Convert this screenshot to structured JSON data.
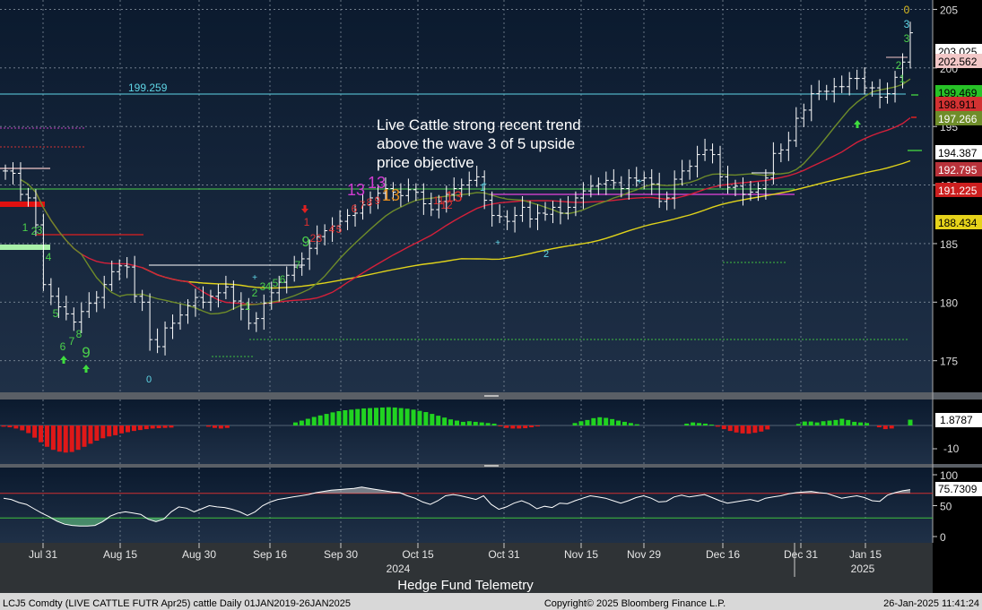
{
  "chart_data": {
    "type": "bar",
    "title": "Hedge Fund Telemetry",
    "annotation": "Live Cattle strong recent trend above the wave 3 of 5 upside price objective",
    "annotation_lines": [
      "Live Cattle strong recent trend",
      "above the wave 3 of 5 upside",
      "price objective"
    ],
    "footer_left": "LCJ5 Comdty (LIVE CATTLE FUTR  Apr25) cattle  Daily 01JAN2019-26JAN2025",
    "footer_center": "Copyright© 2025 Bloomberg Finance L.P.",
    "footer_right": "26-Jan-2025 11:41:24",
    "x_ticks": [
      "Jul 31",
      "Aug 15",
      "Aug 30",
      "Sep 16",
      "Sep 30",
      "Oct 15",
      "Oct 31",
      "Nov 15",
      "Nov 29",
      "Dec 16",
      "Dec 31",
      "Jan 15"
    ],
    "x_years": [
      "2024",
      "2025"
    ],
    "price_panel": {
      "ylim": [
        172.3,
        205.8
      ],
      "y_ticks": [
        "205",
        "200",
        "195",
        "190",
        "185",
        "180",
        "175"
      ],
      "closes": [
        191.2,
        191.0,
        189.2,
        188.9,
        186.6,
        181.5,
        180.5,
        179.6,
        179.0,
        178.3,
        179.2,
        179.9,
        180.4,
        181.5,
        182.6,
        183.1,
        183.0,
        180.5,
        180.0,
        176.8,
        176.2,
        177.8,
        178.2,
        178.9,
        179.7,
        180.4,
        180.0,
        180.5,
        180.8,
        181.3,
        180.1,
        179.4,
        178.2,
        178.6,
        179.9,
        180.8,
        181.7,
        182.3,
        183.0,
        183.7,
        184.6,
        185.6,
        186.1,
        186.5,
        186.9,
        187.4,
        187.6,
        188.3,
        188.9,
        189.3,
        189.7,
        189.4,
        189.1,
        189.6,
        189.4,
        188.4,
        187.9,
        188.6,
        189.2,
        189.7,
        190.0,
        190.4,
        190.7,
        188.7,
        187.4,
        187.3,
        186.9,
        187.4,
        188.1,
        187.1,
        187.6,
        187.5,
        188.1,
        187.6,
        188.1,
        188.9,
        189.5,
        189.9,
        190.1,
        190.4,
        190.2,
        189.7,
        190.6,
        190.4,
        190.6,
        190.1,
        188.6,
        188.9,
        190.5,
        191.2,
        191.6,
        192.6,
        193.0,
        192.6,
        190.7,
        189.8,
        189.9,
        189.2,
        189.4,
        189.7,
        190.6,
        192.7,
        193.0,
        193.8,
        195.7,
        196.4,
        197.8,
        198.0,
        198.0,
        198.4,
        198.4,
        199.1,
        199.1,
        198.3,
        198.3,
        197.5,
        197.8,
        199.2,
        200.5,
        203.0
      ],
      "series": [
        {
          "name": "",
          "color": "#6e8b2a"
        },
        {
          "name": "",
          "color": "#d4203a"
        },
        {
          "name": "",
          "color": "#e0d31a"
        }
      ],
      "h_lines": [
        {
          "label": "199.259",
          "value": 199.26,
          "color": "#5fd6e6"
        },
        {
          "label": "",
          "value": 191.2,
          "color": "#4bd04b"
        },
        {
          "label": "",
          "value": 190.9,
          "color": "#c33ec3"
        },
        {
          "label": "",
          "value": 178.375,
          "color": "#3fbf3f"
        }
      ],
      "price_labels": [
        {
          "value": "203.025",
          "bg": "#ffffff",
          "fg": "#000000"
        },
        {
          "value": "202.562",
          "bg": "#f2c7c7",
          "fg": "#000000"
        },
        {
          "value": "199.469",
          "bg": "#27c227",
          "fg": "#000000"
        },
        {
          "value": "198.911",
          "bg": "#d23232",
          "fg": "#000000"
        },
        {
          "value": "197.266",
          "bg": "#6f8d2a",
          "fg": "#ffffff"
        },
        {
          "value": "194.387",
          "bg": "#ffffff",
          "fg": "#000000"
        },
        {
          "value": "192.795",
          "bg": "#b8323a",
          "fg": "#ffffff"
        },
        {
          "value": "191.225",
          "bg": "#cc1f1f",
          "fg": "#ffffff"
        },
        {
          "value": "188.434",
          "bg": "#e6d21a",
          "fg": "#000000"
        }
      ]
    },
    "td_counts": [
      {
        "text": "1",
        "color": "#4bd04b",
        "size": 12
      },
      {
        "text": "2",
        "color": "#4bd04b",
        "size": 12
      },
      {
        "text": "3",
        "color": "#4bd04b",
        "size": 12
      },
      {
        "text": "4",
        "color": "#4bd04b",
        "size": 12
      },
      {
        "text": "5",
        "color": "#4bd04b",
        "size": 12
      },
      {
        "text": "6",
        "color": "#4bd04b",
        "size": 12
      },
      {
        "text": "7",
        "color": "#4bd04b",
        "size": 12
      },
      {
        "text": "8",
        "color": "#4bd04b",
        "size": 12
      },
      {
        "text": "9",
        "color": "#4bd04b",
        "size": 17
      },
      {
        "text": "0",
        "color": "#5fd6e6",
        "size": 11
      },
      {
        "text": "1",
        "color": "#4bd04b",
        "size": 12
      },
      {
        "text": "2",
        "color": "#4bd04b",
        "size": 12
      },
      {
        "text": "3",
        "color": "#4bd04b",
        "size": 12
      },
      {
        "text": "4",
        "color": "#4bd04b",
        "size": 12
      },
      {
        "text": "5",
        "color": "#4bd04b",
        "size": 12
      },
      {
        "text": "6",
        "color": "#4bd04b",
        "size": 12
      },
      {
        "text": "7",
        "color": "#4bd04b",
        "size": 12
      },
      {
        "text": "9",
        "color": "#4bd04b",
        "size": 16
      },
      {
        "text": "1",
        "color": "#e03030",
        "size": 12
      },
      {
        "text": "2",
        "color": "#e03030",
        "size": 12
      },
      {
        "text": "3",
        "color": "#e03030",
        "size": 12
      },
      {
        "text": "4",
        "color": "#e03030",
        "size": 12
      },
      {
        "text": "5",
        "color": "#e03030",
        "size": 12
      },
      {
        "text": "6",
        "color": "#e03030",
        "size": 12
      },
      {
        "text": "7",
        "color": "#e03030",
        "size": 12
      },
      {
        "text": "8",
        "color": "#e03030",
        "size": 12
      },
      {
        "text": "9",
        "color": "#e03030",
        "size": 12
      },
      {
        "text": "13",
        "color": "#d23cd2",
        "size": 18
      },
      {
        "text": "13",
        "color": "#d23cd2",
        "size": 18
      },
      {
        "text": "13",
        "color": "#e08a1a",
        "size": 18
      },
      {
        "text": "11",
        "color": "#e03030",
        "size": 12
      },
      {
        "text": "12",
        "color": "#e03030",
        "size": 12
      },
      {
        "text": "13",
        "color": "#e03030",
        "size": 17
      },
      {
        "text": "1",
        "color": "#5fd6e6",
        "size": 11
      },
      {
        "text": "2",
        "color": "#5fd6e6",
        "size": 11
      },
      {
        "text": "1",
        "color": "#4bd04b",
        "size": 12
      },
      {
        "text": "2",
        "color": "#4bd04b",
        "size": 12
      },
      {
        "text": "3",
        "color": "#4bd04b",
        "size": 12
      },
      {
        "text": "3",
        "color": "#5fd6e6",
        "size": 12
      },
      {
        "text": "0",
        "color": "#e0c020",
        "size": 12
      }
    ],
    "macd_panel": {
      "y_ticks": [
        "-10"
      ],
      "last_label": "1.8787",
      "values": [
        -0.4,
        -0.6,
        -1,
        -1.6,
        -2.5,
        -4,
        -5.5,
        -7,
        -8,
        -8.6,
        -8.9,
        -8.7,
        -8,
        -7,
        -6,
        -5,
        -4.2,
        -3.6,
        -3.2,
        -2.6,
        -2.2,
        -1.8,
        -1.5,
        -1.2,
        -1,
        -0.9,
        -0.8,
        -0.7,
        0,
        0,
        0,
        0,
        0,
        -0.4,
        -0.8,
        -1,
        -0.8,
        0,
        0,
        0,
        0,
        0,
        0,
        0,
        0,
        0,
        0,
        1,
        1.6,
        2.2,
        2.8,
        3.3,
        3.8,
        4.3,
        4.7,
        5,
        5.2,
        5.4,
        5.6,
        5.7,
        5.8,
        5.9,
        6,
        5.9,
        5.7,
        5.5,
        5.2,
        4.8,
        4.4,
        3.8,
        3.2,
        2.6,
        2,
        1.6,
        1.2,
        1.4,
        1.2,
        1,
        0.8,
        0.6,
        -0.3,
        -0.8,
        -1,
        -1,
        -0.9,
        -0.6,
        -0.3,
        0,
        0,
        0,
        0,
        0,
        0.8,
        1.4,
        1.8,
        2.4,
        2.7,
        2.5,
        2.1,
        1.6,
        1.2,
        0.8,
        0.4,
        0,
        0,
        0,
        0,
        0,
        0,
        0,
        0.6,
        1,
        0.8,
        0.6,
        0.3,
        -0.4,
        -1.2,
        -1.8,
        -2.3,
        -2.6,
        -2.7,
        -2.4,
        -2,
        -1.3,
        0,
        0,
        0,
        0,
        0.5,
        1.3,
        1.3,
        1,
        1.4,
        1.6,
        1.8,
        2.2,
        1.8,
        1.2,
        1,
        0.8,
        0,
        -0.6,
        -1.2,
        -1,
        0,
        0,
        1.9
      ]
    },
    "rsi_panel": {
      "ylim": [
        0,
        100
      ],
      "y_ticks": [
        "100",
        "50",
        "0"
      ],
      "levels": [
        70,
        30
      ],
      "last_label": "75.7309",
      "values": [
        62,
        60,
        55,
        52,
        45,
        38,
        32,
        25,
        20,
        18,
        17,
        17,
        18,
        24,
        33,
        38,
        40,
        38,
        36,
        28,
        24,
        28,
        40,
        48,
        46,
        40,
        45,
        50,
        48,
        47,
        44,
        40,
        34,
        40,
        50,
        56,
        60,
        62,
        64,
        66,
        68,
        71,
        73,
        75,
        76,
        77,
        78,
        80,
        78,
        76,
        74,
        72,
        71,
        66,
        62,
        56,
        52,
        58,
        66,
        68,
        66,
        63,
        60,
        66,
        52,
        44,
        48,
        54,
        58,
        53,
        45,
        49,
        47,
        54,
        53,
        58,
        62,
        66,
        64,
        62,
        58,
        54,
        58,
        63,
        66,
        62,
        56,
        57,
        64,
        67,
        64,
        66,
        68,
        63,
        58,
        54,
        56,
        58,
        60,
        57,
        62,
        64,
        66,
        69,
        71,
        72,
        73,
        71,
        70,
        66,
        62,
        64,
        66,
        63,
        58,
        57,
        67,
        71,
        74,
        76
      ]
    }
  }
}
